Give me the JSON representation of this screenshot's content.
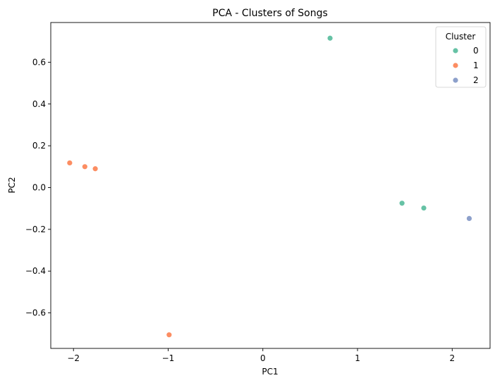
{
  "chart_data": {
    "type": "scatter",
    "title": "PCA - Clusters of Songs",
    "xlabel": "PC1",
    "ylabel": "PC2",
    "xlim": [
      -2.24,
      2.4
    ],
    "ylim": [
      -0.77,
      0.79
    ],
    "xticks": [
      -2,
      -1,
      0,
      1,
      2
    ],
    "xtick_labels": [
      "−2",
      "−1",
      "0",
      "1",
      "2"
    ],
    "yticks": [
      -0.6,
      -0.4,
      -0.2,
      0.0,
      0.2,
      0.4,
      0.6
    ],
    "ytick_labels": [
      "−0.6",
      "−0.4",
      "−0.2",
      "0.0",
      "0.2",
      "0.4",
      "0.6"
    ],
    "grid": false,
    "legend": {
      "title": "Cluster",
      "position": "top-right"
    },
    "series": [
      {
        "name": "0",
        "color": "#66c2a5",
        "points": [
          [
            0.71,
            0.715
          ],
          [
            1.47,
            -0.075
          ],
          [
            1.7,
            -0.098
          ]
        ]
      },
      {
        "name": "1",
        "color": "#fc8d62",
        "points": [
          [
            -2.04,
            0.118
          ],
          [
            -1.88,
            0.1
          ],
          [
            -1.77,
            0.09
          ],
          [
            -0.99,
            -0.705
          ]
        ]
      },
      {
        "name": "2",
        "color": "#8da0cb",
        "points": [
          [
            2.18,
            -0.148
          ]
        ]
      }
    ]
  }
}
